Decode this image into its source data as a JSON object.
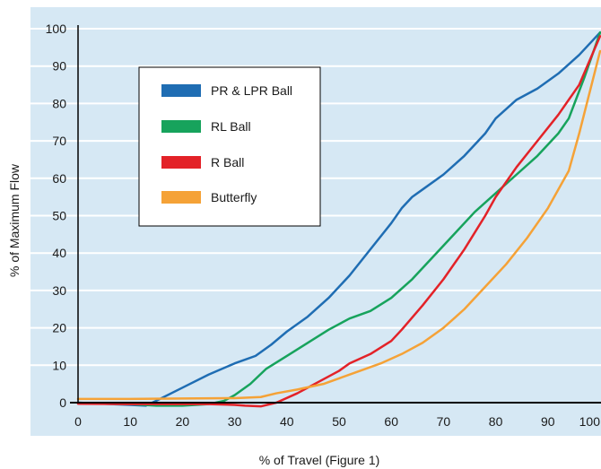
{
  "chart_data": {
    "type": "line",
    "title": "",
    "xlabel": "% of Travel (Figure 1)",
    "ylabel": "% of Maximum Flow",
    "xlim": [
      0,
      100
    ],
    "ylim": [
      0,
      100
    ],
    "x_ticks": [
      "0",
      "10",
      "20",
      "30",
      "40",
      "50",
      "60",
      "70",
      "80",
      "90",
      "100"
    ],
    "y_ticks": [
      "0",
      "10",
      "20",
      "30",
      "40",
      "50",
      "60",
      "70",
      "80",
      "90",
      "100"
    ],
    "grid": "horizontal",
    "legend_position": "upper-left",
    "plot_background": "#d6e8f4",
    "series": [
      {
        "name": "PR & LPR Ball",
        "color": "#1f6db3",
        "points": [
          [
            0,
            0
          ],
          [
            5,
            -0.3
          ],
          [
            10,
            -0.6
          ],
          [
            13,
            -0.8
          ],
          [
            15,
            0.5
          ],
          [
            20,
            4
          ],
          [
            25,
            7.5
          ],
          [
            30,
            10.5
          ],
          [
            34,
            12.5
          ],
          [
            37,
            15.5
          ],
          [
            40,
            19
          ],
          [
            44,
            23
          ],
          [
            48,
            28
          ],
          [
            52,
            34
          ],
          [
            56,
            41
          ],
          [
            60,
            48
          ],
          [
            62,
            52
          ],
          [
            64,
            55
          ],
          [
            66,
            57
          ],
          [
            70,
            61
          ],
          [
            74,
            66
          ],
          [
            78,
            72
          ],
          [
            80,
            76
          ],
          [
            84,
            81
          ],
          [
            88,
            84
          ],
          [
            92,
            88
          ],
          [
            96,
            93
          ],
          [
            100,
            99
          ]
        ]
      },
      {
        "name": "RL Ball",
        "color": "#17a35c",
        "points": [
          [
            0,
            -0.2
          ],
          [
            10,
            -0.4
          ],
          [
            15,
            -0.8
          ],
          [
            20,
            -0.8
          ],
          [
            25,
            -0.4
          ],
          [
            28,
            0.5
          ],
          [
            30,
            2
          ],
          [
            33,
            5
          ],
          [
            36,
            9
          ],
          [
            40,
            12.5
          ],
          [
            44,
            16
          ],
          [
            48,
            19.5
          ],
          [
            52,
            22.5
          ],
          [
            56,
            24.5
          ],
          [
            60,
            28
          ],
          [
            64,
            33
          ],
          [
            68,
            39
          ],
          [
            72,
            45
          ],
          [
            76,
            51
          ],
          [
            80,
            56
          ],
          [
            84,
            61
          ],
          [
            88,
            66
          ],
          [
            92,
            72
          ],
          [
            94,
            76
          ],
          [
            97,
            87
          ],
          [
            100,
            99
          ]
        ]
      },
      {
        "name": "R Ball",
        "color": "#e32228",
        "points": [
          [
            0,
            -0.3
          ],
          [
            10,
            -0.4
          ],
          [
            20,
            -0.4
          ],
          [
            25,
            -0.4
          ],
          [
            30,
            -0.6
          ],
          [
            32,
            -0.8
          ],
          [
            35,
            -1
          ],
          [
            38,
            0
          ],
          [
            42,
            2.5
          ],
          [
            46,
            5.5
          ],
          [
            50,
            8.5
          ],
          [
            52,
            10.5
          ],
          [
            56,
            13
          ],
          [
            60,
            16.5
          ],
          [
            62,
            19.5
          ],
          [
            66,
            26
          ],
          [
            70,
            33
          ],
          [
            74,
            41
          ],
          [
            78,
            50
          ],
          [
            80,
            55
          ],
          [
            84,
            63
          ],
          [
            88,
            70
          ],
          [
            92,
            77
          ],
          [
            96,
            85
          ],
          [
            100,
            98
          ]
        ]
      },
      {
        "name": "Butterfly",
        "color": "#f5a237",
        "points": [
          [
            0,
            1
          ],
          [
            10,
            1
          ],
          [
            20,
            1.1
          ],
          [
            30,
            1.2
          ],
          [
            35,
            1.5
          ],
          [
            38,
            2.5
          ],
          [
            42,
            3.5
          ],
          [
            47,
            5
          ],
          [
            50,
            6.5
          ],
          [
            54,
            8.5
          ],
          [
            58,
            10.5
          ],
          [
            62,
            13
          ],
          [
            66,
            16
          ],
          [
            70,
            20
          ],
          [
            74,
            25
          ],
          [
            78,
            31
          ],
          [
            82,
            37
          ],
          [
            86,
            44
          ],
          [
            90,
            52
          ],
          [
            94,
            62
          ],
          [
            96,
            72
          ],
          [
            98,
            83
          ],
          [
            100,
            94
          ]
        ]
      }
    ]
  }
}
